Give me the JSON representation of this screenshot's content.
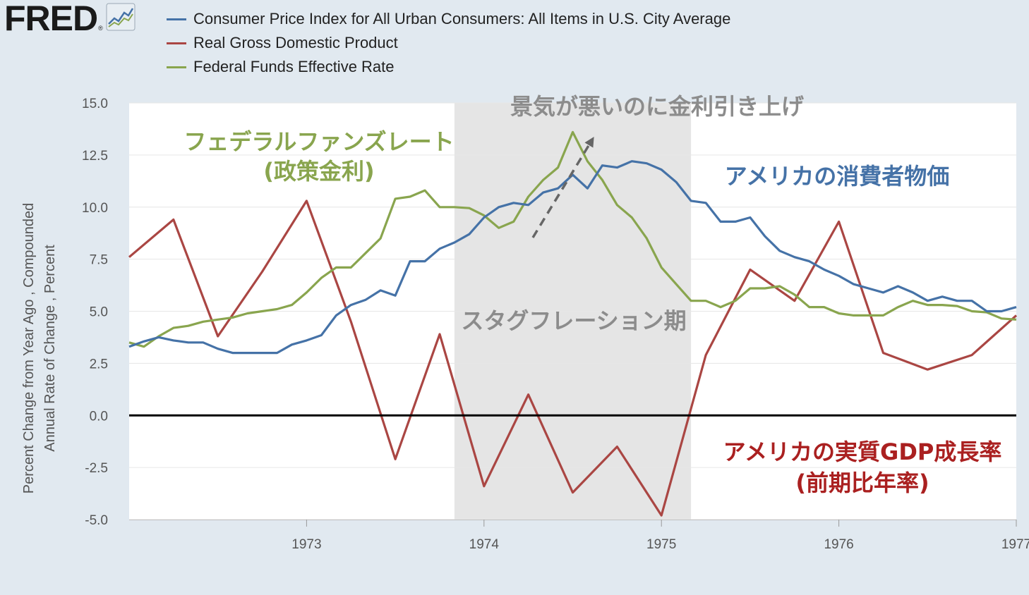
{
  "header": {
    "logo_text": "FRED",
    "logo_reg": "®"
  },
  "legend": [
    {
      "label": "Consumer Price Index for All Urban Consumers: All Items in U.S. City Average",
      "color": "#4572a7"
    },
    {
      "label": "Real Gross Domestic Product",
      "color": "#aa4643"
    },
    {
      "label": "Federal Funds Effective Rate",
      "color": "#89a54e"
    }
  ],
  "y_axis_label": {
    "line1": "Percent Change from Year Ago , Compounded",
    "line2": "Annual Rate of Change , Percent"
  },
  "annotations": {
    "stagflation": "スタグフレーション期",
    "rate_hike": "景気が悪いのに金利引き上げ",
    "ff_title": "フェデラルファンズレート",
    "ff_sub": "(政策金利)",
    "cpi": "アメリカの消費者物価",
    "gdp_title": "アメリカの実質GDP成長率",
    "gdp_sub": "(前期比年率)"
  },
  "chart_data": {
    "type": "line",
    "x_range": [
      "1972-01-01",
      "1977-01-01"
    ],
    "ylim": [
      -5.0,
      15.0
    ],
    "y_ticks": [
      "15.0",
      "12.5",
      "10.0",
      "7.5",
      "5.0",
      "2.5",
      "0.0",
      "-2.5",
      "-5.0"
    ],
    "x_ticks": [
      "1973",
      "1974",
      "1975",
      "1976",
      "1977"
    ],
    "shaded_recession": [
      "1973-11-01",
      "1975-03-01"
    ],
    "zero_line": true,
    "series": [
      {
        "name": "Consumer Price Index for All Urban Consumers: All Items in U.S. City Average",
        "color": "#4572a7",
        "points": [
          [
            "1972-01",
            3.3
          ],
          [
            "1972-02",
            3.55
          ],
          [
            "1972-03",
            3.75
          ],
          [
            "1972-04",
            3.6
          ],
          [
            "1972-05",
            3.5
          ],
          [
            "1972-06",
            3.5
          ],
          [
            "1972-07",
            3.2
          ],
          [
            "1972-08",
            3.0
          ],
          [
            "1972-09",
            3.0
          ],
          [
            "1972-10",
            3.0
          ],
          [
            "1972-11",
            3.0
          ],
          [
            "1972-12",
            3.4
          ],
          [
            "1973-01",
            3.6
          ],
          [
            "1973-02",
            3.85
          ],
          [
            "1973-03",
            4.8
          ],
          [
            "1973-04",
            5.3
          ],
          [
            "1973-05",
            5.55
          ],
          [
            "1973-06",
            6.0
          ],
          [
            "1973-07",
            5.75
          ],
          [
            "1973-08",
            7.4
          ],
          [
            "1973-09",
            7.4
          ],
          [
            "1973-10",
            8.0
          ],
          [
            "1973-11",
            8.3
          ],
          [
            "1973-12",
            8.7
          ],
          [
            "1974-01",
            9.5
          ],
          [
            "1974-02",
            10.0
          ],
          [
            "1974-03",
            10.2
          ],
          [
            "1974-04",
            10.1
          ],
          [
            "1974-05",
            10.7
          ],
          [
            "1974-06",
            10.9
          ],
          [
            "1974-07",
            11.55
          ],
          [
            "1974-08",
            10.9
          ],
          [
            "1974-09",
            12.0
          ],
          [
            "1974-10",
            11.9
          ],
          [
            "1974-11",
            12.2
          ],
          [
            "1974-12",
            12.1
          ],
          [
            "1975-01",
            11.8
          ],
          [
            "1975-02",
            11.2
          ],
          [
            "1975-03",
            10.3
          ],
          [
            "1975-04",
            10.2
          ],
          [
            "1975-05",
            9.3
          ],
          [
            "1975-06",
            9.3
          ],
          [
            "1975-07",
            9.5
          ],
          [
            "1975-08",
            8.6
          ],
          [
            "1975-09",
            7.9
          ],
          [
            "1975-10",
            7.6
          ],
          [
            "1975-11",
            7.4
          ],
          [
            "1975-12",
            7.0
          ],
          [
            "1976-01",
            6.7
          ],
          [
            "1976-02",
            6.3
          ],
          [
            "1976-03",
            6.1
          ],
          [
            "1976-04",
            5.9
          ],
          [
            "1976-05",
            6.2
          ],
          [
            "1976-06",
            5.9
          ],
          [
            "1976-07",
            5.5
          ],
          [
            "1976-08",
            5.7
          ],
          [
            "1976-09",
            5.5
          ],
          [
            "1976-10",
            5.5
          ],
          [
            "1976-11",
            5.0
          ],
          [
            "1976-12",
            5.0
          ],
          [
            "1977-01",
            5.2
          ]
        ]
      },
      {
        "name": "Real Gross Domestic Product",
        "color": "#aa4643",
        "points": [
          [
            "1972-01",
            7.6
          ],
          [
            "1972-04",
            9.4
          ],
          [
            "1972-07",
            3.8
          ],
          [
            "1972-10",
            6.9
          ],
          [
            "1973-01",
            10.3
          ],
          [
            "1973-04",
            4.5
          ],
          [
            "1973-07",
            -2.1
          ],
          [
            "1973-10",
            3.9
          ],
          [
            "1974-01",
            -3.4
          ],
          [
            "1974-04",
            1.0
          ],
          [
            "1974-07",
            -3.7
          ],
          [
            "1974-10",
            -1.5
          ],
          [
            "1975-01",
            -4.8
          ],
          [
            "1975-04",
            2.9
          ],
          [
            "1975-07",
            7.0
          ],
          [
            "1975-10",
            5.5
          ],
          [
            "1976-01",
            9.3
          ],
          [
            "1976-04",
            3.0
          ],
          [
            "1976-07",
            2.2
          ],
          [
            "1976-10",
            2.9
          ],
          [
            "1977-01",
            4.8
          ]
        ]
      },
      {
        "name": "Federal Funds Effective Rate",
        "color": "#89a54e",
        "points": [
          [
            "1972-01",
            3.5
          ],
          [
            "1972-02",
            3.3
          ],
          [
            "1972-03",
            3.8
          ],
          [
            "1972-04",
            4.2
          ],
          [
            "1972-05",
            4.3
          ],
          [
            "1972-06",
            4.5
          ],
          [
            "1972-07",
            4.6
          ],
          [
            "1972-08",
            4.7
          ],
          [
            "1972-09",
            4.9
          ],
          [
            "1972-10",
            5.0
          ],
          [
            "1972-11",
            5.1
          ],
          [
            "1972-12",
            5.3
          ],
          [
            "1973-01",
            5.9
          ],
          [
            "1973-02",
            6.6
          ],
          [
            "1973-03",
            7.1
          ],
          [
            "1973-04",
            7.1
          ],
          [
            "1973-05",
            7.8
          ],
          [
            "1973-06",
            8.5
          ],
          [
            "1973-07",
            10.4
          ],
          [
            "1973-08",
            10.5
          ],
          [
            "1973-09",
            10.8
          ],
          [
            "1973-10",
            10.0
          ],
          [
            "1973-11",
            10.0
          ],
          [
            "1973-12",
            9.95
          ],
          [
            "1974-01",
            9.6
          ],
          [
            "1974-02",
            9.0
          ],
          [
            "1974-03",
            9.3
          ],
          [
            "1974-04",
            10.5
          ],
          [
            "1974-05",
            11.3
          ],
          [
            "1974-06",
            11.9
          ],
          [
            "1974-07",
            13.6
          ],
          [
            "1974-08",
            12.2
          ],
          [
            "1974-09",
            11.3
          ],
          [
            "1974-10",
            10.1
          ],
          [
            "1974-11",
            9.5
          ],
          [
            "1974-12",
            8.5
          ],
          [
            "1975-01",
            7.1
          ],
          [
            "1975-02",
            6.3
          ],
          [
            "1975-03",
            5.5
          ],
          [
            "1975-04",
            5.5
          ],
          [
            "1975-05",
            5.2
          ],
          [
            "1975-06",
            5.5
          ],
          [
            "1975-07",
            6.1
          ],
          [
            "1975-08",
            6.1
          ],
          [
            "1975-09",
            6.2
          ],
          [
            "1975-10",
            5.8
          ],
          [
            "1975-11",
            5.2
          ],
          [
            "1975-12",
            5.2
          ],
          [
            "1976-01",
            4.9
          ],
          [
            "1976-02",
            4.8
          ],
          [
            "1976-03",
            4.8
          ],
          [
            "1976-04",
            4.8
          ],
          [
            "1976-05",
            5.2
          ],
          [
            "1976-06",
            5.5
          ],
          [
            "1976-07",
            5.3
          ],
          [
            "1976-08",
            5.3
          ],
          [
            "1976-09",
            5.25
          ],
          [
            "1976-10",
            5.0
          ],
          [
            "1976-11",
            4.95
          ],
          [
            "1976-12",
            4.65
          ],
          [
            "1977-01",
            4.6
          ]
        ]
      }
    ]
  }
}
